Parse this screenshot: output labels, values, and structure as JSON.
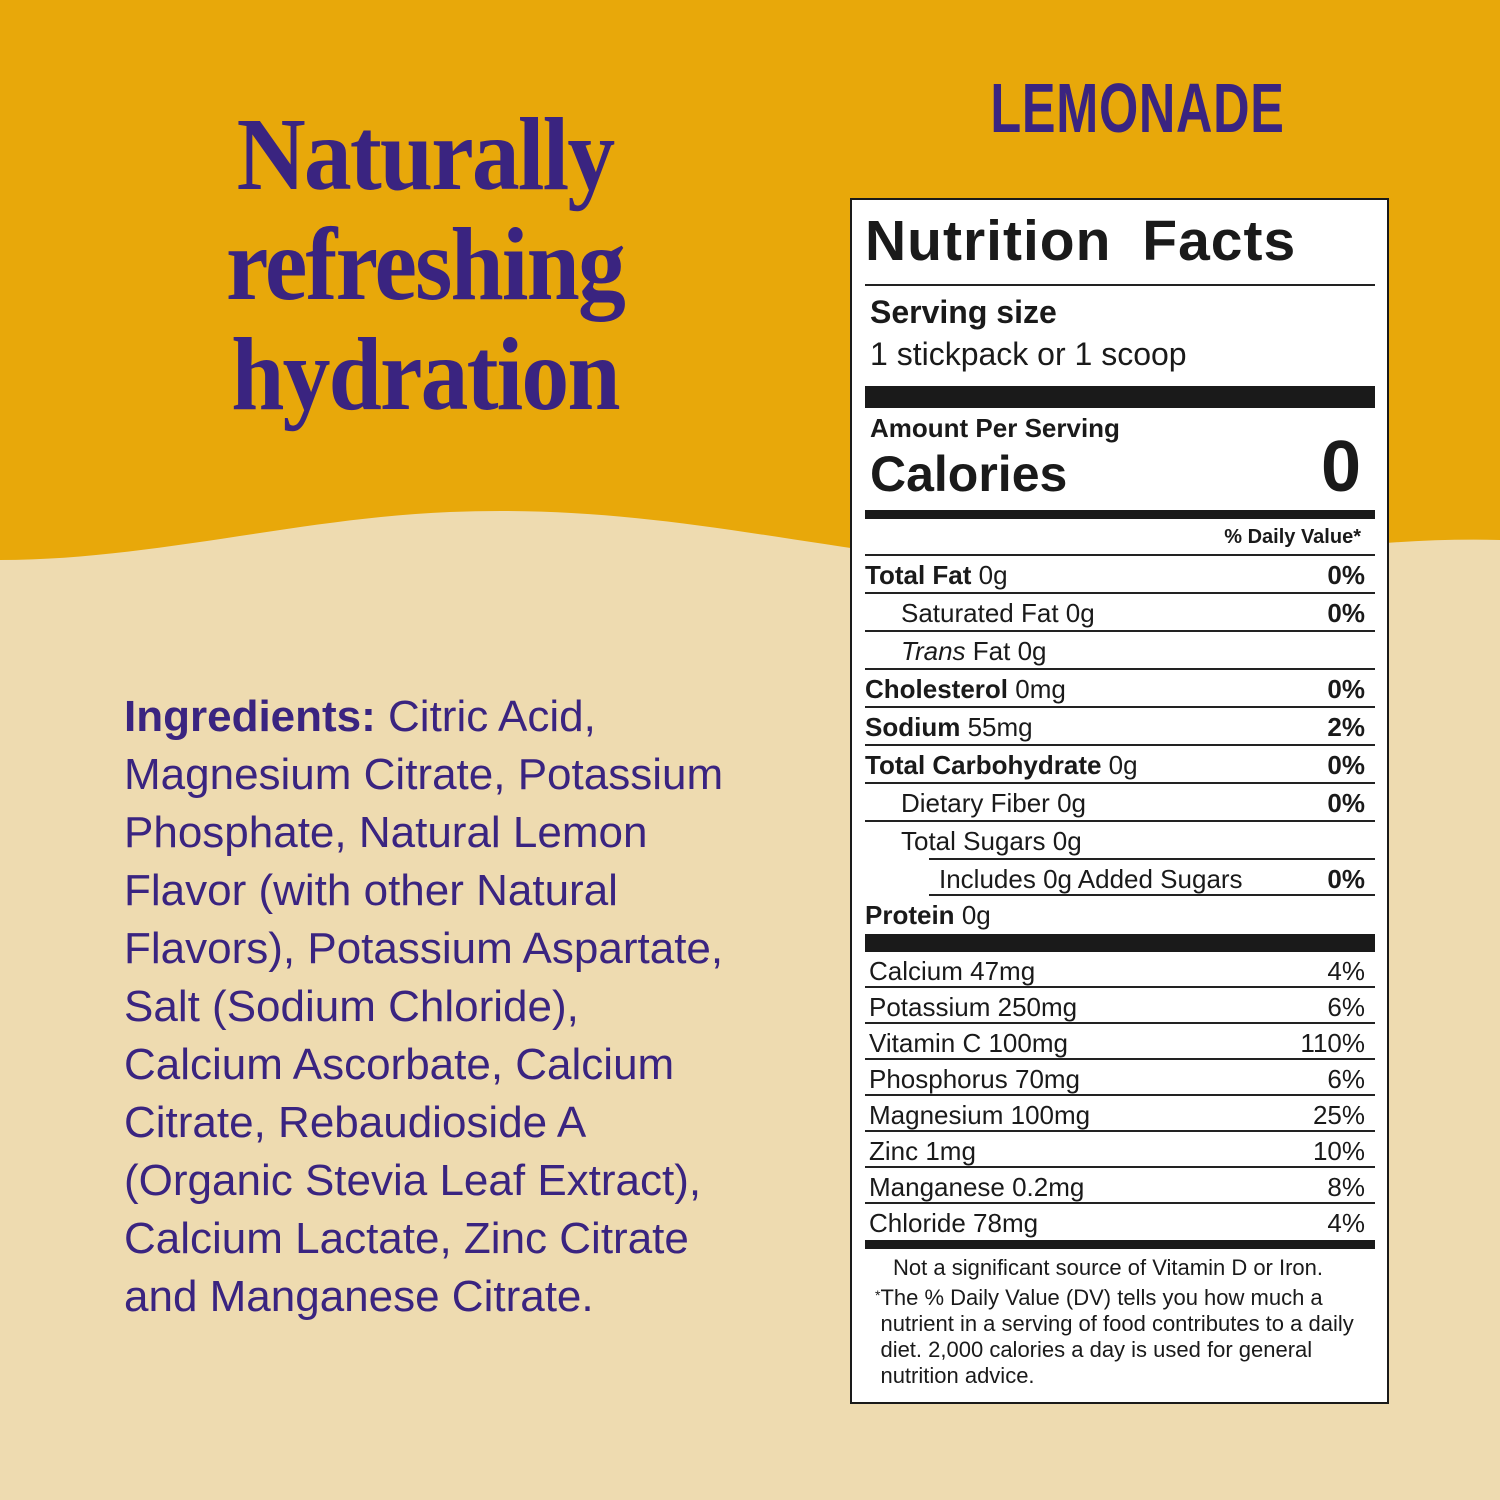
{
  "colors": {
    "top": "#E8A80A",
    "bottom": "#EEDBB0",
    "text": "#3A2480"
  },
  "headline": [
    "Naturally",
    "refreshing",
    "hydration"
  ],
  "brand": "LEMONADE",
  "ingredients": {
    "label": "Ingredients:",
    "lines": [
      " Citric Acid,",
      "Magnesium Citrate, Potassium",
      "Phosphate, Natural Lemon",
      "Flavor (with other Natural",
      "Flavors), Potassium Aspartate,",
      "Salt (Sodium Chloride),",
      "Calcium Ascorbate, Calcium",
      "Citrate, Rebaudioside A",
      "(Organic Stevia Leaf Extract),",
      "Calcium Lactate, Zinc Citrate",
      "and Manganese Citrate."
    ]
  },
  "label": {
    "title": "Nutrition Facts",
    "serving_label": "Serving size",
    "serving_value": "1 stickpack or 1 scoop",
    "amount_per_serving": "Amount Per Serving",
    "calories_label": "Calories",
    "calories": "0",
    "dv_header": "% Daily Value*",
    "nutrients": [
      {
        "name": "Total Fat",
        "amount": "0g",
        "dv": "0%"
      },
      {
        "name": "Saturated Fat",
        "amount": "0g",
        "dv": "0%"
      },
      {
        "name": "Trans",
        "name2": "Fat",
        "amount": "0g",
        "dv": ""
      },
      {
        "name": "Cholesterol",
        "amount": "0mg",
        "dv": "0%"
      },
      {
        "name": "Sodium",
        "amount": "55mg",
        "dv": "2%"
      },
      {
        "name": "Total Carbohydrate",
        "amount": "0g",
        "dv": "0%"
      },
      {
        "name": "Dietary Fiber",
        "amount": "0g",
        "dv": "0%"
      },
      {
        "name": "Total Sugars",
        "amount": "0g",
        "dv": ""
      },
      {
        "name": "Includes 0g Added Sugars",
        "dv": "0%"
      },
      {
        "name": "Protein",
        "amount": "0g"
      }
    ],
    "vitamins": [
      {
        "text": "Calcium 47mg",
        "dv": "4%"
      },
      {
        "text": "Potassium 250mg",
        "dv": "6%"
      },
      {
        "text": "Vitamin C 100mg",
        "dv": "110%"
      },
      {
        "text": "Phosphorus 70mg",
        "dv": "6%"
      },
      {
        "text": "Magnesium 100mg",
        "dv": "25%"
      },
      {
        "text": "Zinc 1mg",
        "dv": "10%"
      },
      {
        "text": "Manganese 0.2mg",
        "dv": "8%"
      },
      {
        "text": "Chloride 78mg",
        "dv": "4%"
      }
    ],
    "note": "Not a significant source of Vitamin D or Iron.",
    "footnote_mark": "*",
    "footnote": "The % Daily Value (DV) tells you how much a nutrient in a serving of food contributes to a daily diet. 2,000 calories a day is used for general nutrition advice."
  }
}
